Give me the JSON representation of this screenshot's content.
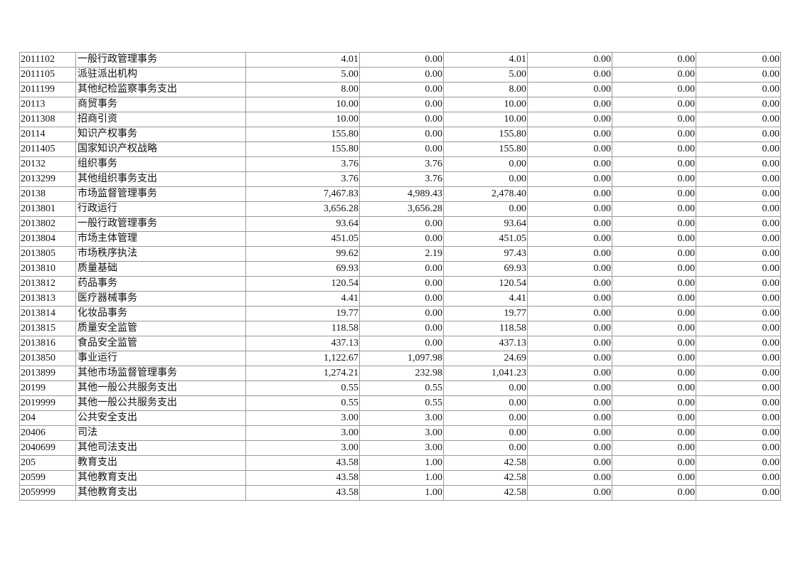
{
  "rows": [
    [
      "2011102",
      "一般行政管理事务",
      "4.01",
      "0.00",
      "4.01",
      "0.00",
      "0.00",
      "0.00"
    ],
    [
      "2011105",
      "派驻派出机构",
      "5.00",
      "0.00",
      "5.00",
      "0.00",
      "0.00",
      "0.00"
    ],
    [
      "2011199",
      "其他纪检监察事务支出",
      "8.00",
      "0.00",
      "8.00",
      "0.00",
      "0.00",
      "0.00"
    ],
    [
      "20113",
      "商贸事务",
      "10.00",
      "0.00",
      "10.00",
      "0.00",
      "0.00",
      "0.00"
    ],
    [
      "2011308",
      "招商引资",
      "10.00",
      "0.00",
      "10.00",
      "0.00",
      "0.00",
      "0.00"
    ],
    [
      "20114",
      "知识产权事务",
      "155.80",
      "0.00",
      "155.80",
      "0.00",
      "0.00",
      "0.00"
    ],
    [
      "2011405",
      "国家知识产权战略",
      "155.80",
      "0.00",
      "155.80",
      "0.00",
      "0.00",
      "0.00"
    ],
    [
      "20132",
      "组织事务",
      "3.76",
      "3.76",
      "0.00",
      "0.00",
      "0.00",
      "0.00"
    ],
    [
      "2013299",
      "其他组织事务支出",
      "3.76",
      "3.76",
      "0.00",
      "0.00",
      "0.00",
      "0.00"
    ],
    [
      "20138",
      "市场监督管理事务",
      "7,467.83",
      "4,989.43",
      "2,478.40",
      "0.00",
      "0.00",
      "0.00"
    ],
    [
      "2013801",
      "行政运行",
      "3,656.28",
      "3,656.28",
      "0.00",
      "0.00",
      "0.00",
      "0.00"
    ],
    [
      "2013802",
      "一般行政管理事务",
      "93.64",
      "0.00",
      "93.64",
      "0.00",
      "0.00",
      "0.00"
    ],
    [
      "2013804",
      "市场主体管理",
      "451.05",
      "0.00",
      "451.05",
      "0.00",
      "0.00",
      "0.00"
    ],
    [
      "2013805",
      "市场秩序执法",
      "99.62",
      "2.19",
      "97.43",
      "0.00",
      "0.00",
      "0.00"
    ],
    [
      "2013810",
      "质量基础",
      "69.93",
      "0.00",
      "69.93",
      "0.00",
      "0.00",
      "0.00"
    ],
    [
      "2013812",
      "药品事务",
      "120.54",
      "0.00",
      "120.54",
      "0.00",
      "0.00",
      "0.00"
    ],
    [
      "2013813",
      "医疗器械事务",
      "4.41",
      "0.00",
      "4.41",
      "0.00",
      "0.00",
      "0.00"
    ],
    [
      "2013814",
      "化妆品事务",
      "19.77",
      "0.00",
      "19.77",
      "0.00",
      "0.00",
      "0.00"
    ],
    [
      "2013815",
      "质量安全监管",
      "118.58",
      "0.00",
      "118.58",
      "0.00",
      "0.00",
      "0.00"
    ],
    [
      "2013816",
      "食品安全监管",
      "437.13",
      "0.00",
      "437.13",
      "0.00",
      "0.00",
      "0.00"
    ],
    [
      "2013850",
      "事业运行",
      "1,122.67",
      "1,097.98",
      "24.69",
      "0.00",
      "0.00",
      "0.00"
    ],
    [
      "2013899",
      "其他市场监督管理事务",
      "1,274.21",
      "232.98",
      "1,041.23",
      "0.00",
      "0.00",
      "0.00"
    ],
    [
      "20199",
      "其他一般公共服务支出",
      "0.55",
      "0.55",
      "0.00",
      "0.00",
      "0.00",
      "0.00"
    ],
    [
      "2019999",
      "其他一般公共服务支出",
      "0.55",
      "0.55",
      "0.00",
      "0.00",
      "0.00",
      "0.00"
    ],
    [
      "204",
      "公共安全支出",
      "3.00",
      "3.00",
      "0.00",
      "0.00",
      "0.00",
      "0.00"
    ],
    [
      "20406",
      "司法",
      "3.00",
      "3.00",
      "0.00",
      "0.00",
      "0.00",
      "0.00"
    ],
    [
      "2040699",
      "其他司法支出",
      "3.00",
      "3.00",
      "0.00",
      "0.00",
      "0.00",
      "0.00"
    ],
    [
      "205",
      "教育支出",
      "43.58",
      "1.00",
      "42.58",
      "0.00",
      "0.00",
      "0.00"
    ],
    [
      "20599",
      "其他教育支出",
      "43.58",
      "1.00",
      "42.58",
      "0.00",
      "0.00",
      "0.00"
    ],
    [
      "2059999",
      "其他教育支出",
      "43.58",
      "1.00",
      "42.58",
      "0.00",
      "0.00",
      "0.00"
    ]
  ]
}
